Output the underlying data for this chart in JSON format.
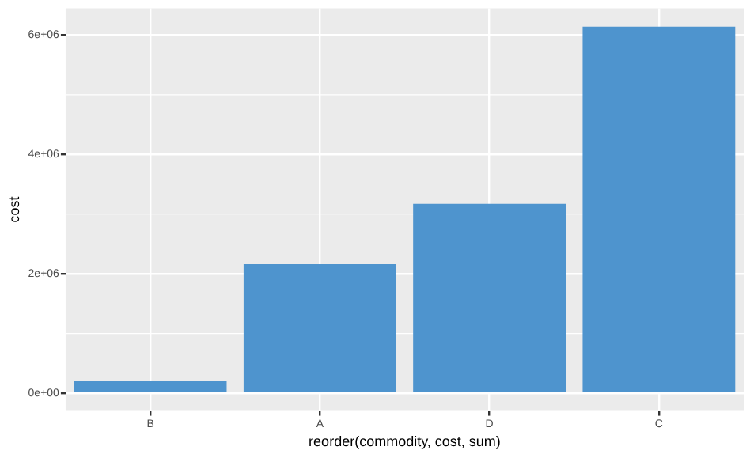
{
  "chart_data": {
    "type": "bar",
    "xlabel": "reorder(commodity, cost, sum)",
    "ylabel": "cost",
    "categories": [
      "B",
      "A",
      "D",
      "C"
    ],
    "series": [
      {
        "color": "#4e94ce",
        "values": [
          200000,
          2160000,
          3170000,
          6140000
        ]
      }
    ],
    "ylim": [
      -300000,
      6450000
    ],
    "yticks": [
      {
        "value": 0,
        "label": "0e+00"
      },
      {
        "value": 2000000,
        "label": "2e+06"
      },
      {
        "value": 4000000,
        "label": "4e+06"
      },
      {
        "value": 6000000,
        "label": "6e+06"
      }
    ],
    "grid": true,
    "legend": false
  }
}
